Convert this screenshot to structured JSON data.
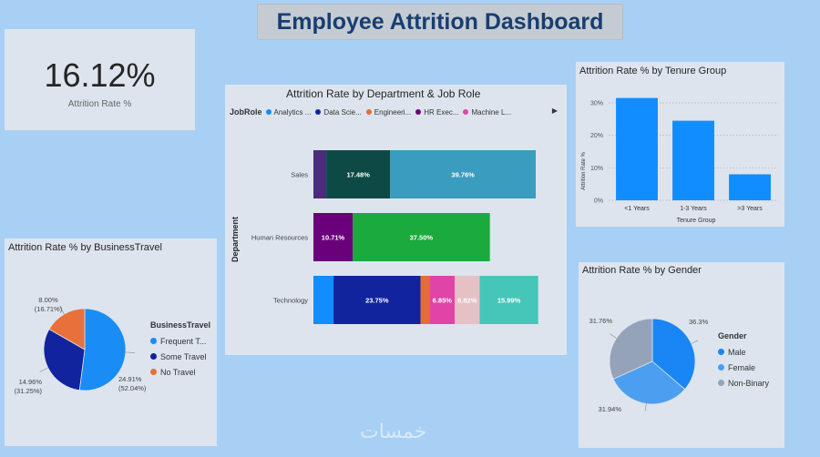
{
  "title": "Employee Attrition Dashboard",
  "kpi": {
    "value": "16.12%",
    "label": "Attrition Rate %"
  },
  "colors": {
    "tenure": "#118dff",
    "grid": "#a0aebd",
    "male": "#1a86f5",
    "female": "#4c9ef0",
    "non_binary": "#94a3b8",
    "frequent": "#1a8cf5",
    "some": "#12239e",
    "no": "#e8703a"
  },
  "chart_data": [
    {
      "id": "tenure",
      "type": "bar",
      "title": "Attrition Rate % by Tenure Group",
      "categories": [
        "<1 Years",
        "1-3 Years",
        ">3 Years"
      ],
      "values": [
        31.5,
        24.5,
        8.0
      ],
      "xlabel": "Tenure Group",
      "ylabel": "Attrition Rate %",
      "ylim": [
        0,
        30
      ],
      "yticks": [
        "0%",
        "10%",
        "20%",
        "30%"
      ],
      "grid": true
    },
    {
      "id": "department",
      "type": "bar",
      "orientation": "horizontal",
      "stacked": true,
      "title": "Attrition Rate by Department & Job Role",
      "ylabel": "Department",
      "legend_title": "JobRole",
      "legend": [
        {
          "name": "Analytics ...",
          "color": "#118dff"
        },
        {
          "name": "Data Scie...",
          "color": "#12239e"
        },
        {
          "name": "Engineeri...",
          "color": "#e66c37"
        },
        {
          "name": "HR Exec...",
          "color": "#6b007b"
        },
        {
          "name": "Machine L...",
          "color": "#e044a7"
        }
      ],
      "legend_more": "▶",
      "categories": [
        "Sales",
        "Human Resources",
        "Technology"
      ],
      "segments": [
        [
          {
            "value": 3.5,
            "color": "#4a2d7a",
            "label": ""
          },
          {
            "value": 17.48,
            "color": "#0e4a45",
            "label": "17.48%"
          },
          {
            "value": 39.76,
            "color": "#3a9cbf",
            "label": "39.76%"
          }
        ],
        [
          {
            "value": 10.71,
            "color": "#6b007b",
            "label": "10.71%"
          },
          {
            "value": 37.5,
            "color": "#1aaa3e",
            "label": "37.50%"
          }
        ],
        [
          {
            "value": 5.5,
            "color": "#118dff",
            "label": ""
          },
          {
            "value": 23.75,
            "color": "#12239e",
            "label": "23.75%"
          },
          {
            "value": 2.5,
            "color": "#e66c37",
            "label": ""
          },
          {
            "value": 6.85,
            "color": "#e044a7",
            "label": "6.85%"
          },
          {
            "value": 6.82,
            "color": "#e5c1c6",
            "label": "6.82%"
          },
          {
            "value": 15.99,
            "color": "#46c6b9",
            "label": "15.99%"
          }
        ]
      ],
      "xmax": 65
    },
    {
      "id": "business",
      "type": "pie",
      "title": "Attrition Rate % by BusinessTravel",
      "legend_title": "BusinessTravel",
      "slices": [
        {
          "name": "Frequent T...",
          "value": 52.04,
          "color": "#1a8cf5",
          "label_top": "24.91%",
          "label_bottom": "(52.04%)"
        },
        {
          "name": "Some Travel",
          "value": 31.25,
          "color": "#12239e",
          "label_top": "14.96%",
          "label_bottom": "(31.25%)"
        },
        {
          "name": "No Travel",
          "value": 16.71,
          "color": "#e8703a",
          "label_top": "8.00%",
          "label_bottom": "(16.71%)"
        }
      ]
    },
    {
      "id": "gender",
      "type": "pie",
      "title": "Attrition Rate % by Gender",
      "legend_title": "Gender",
      "slices": [
        {
          "name": "Male",
          "value": 36.3,
          "color": "#1a86f5",
          "label": "36.3%"
        },
        {
          "name": "Female",
          "value": 31.94,
          "color": "#4c9ef0",
          "label": "31.94%"
        },
        {
          "name": "Non-Binary",
          "value": 31.76,
          "color": "#94a3b8",
          "label": "31.76%"
        }
      ]
    }
  ],
  "watermark": "خمسات"
}
